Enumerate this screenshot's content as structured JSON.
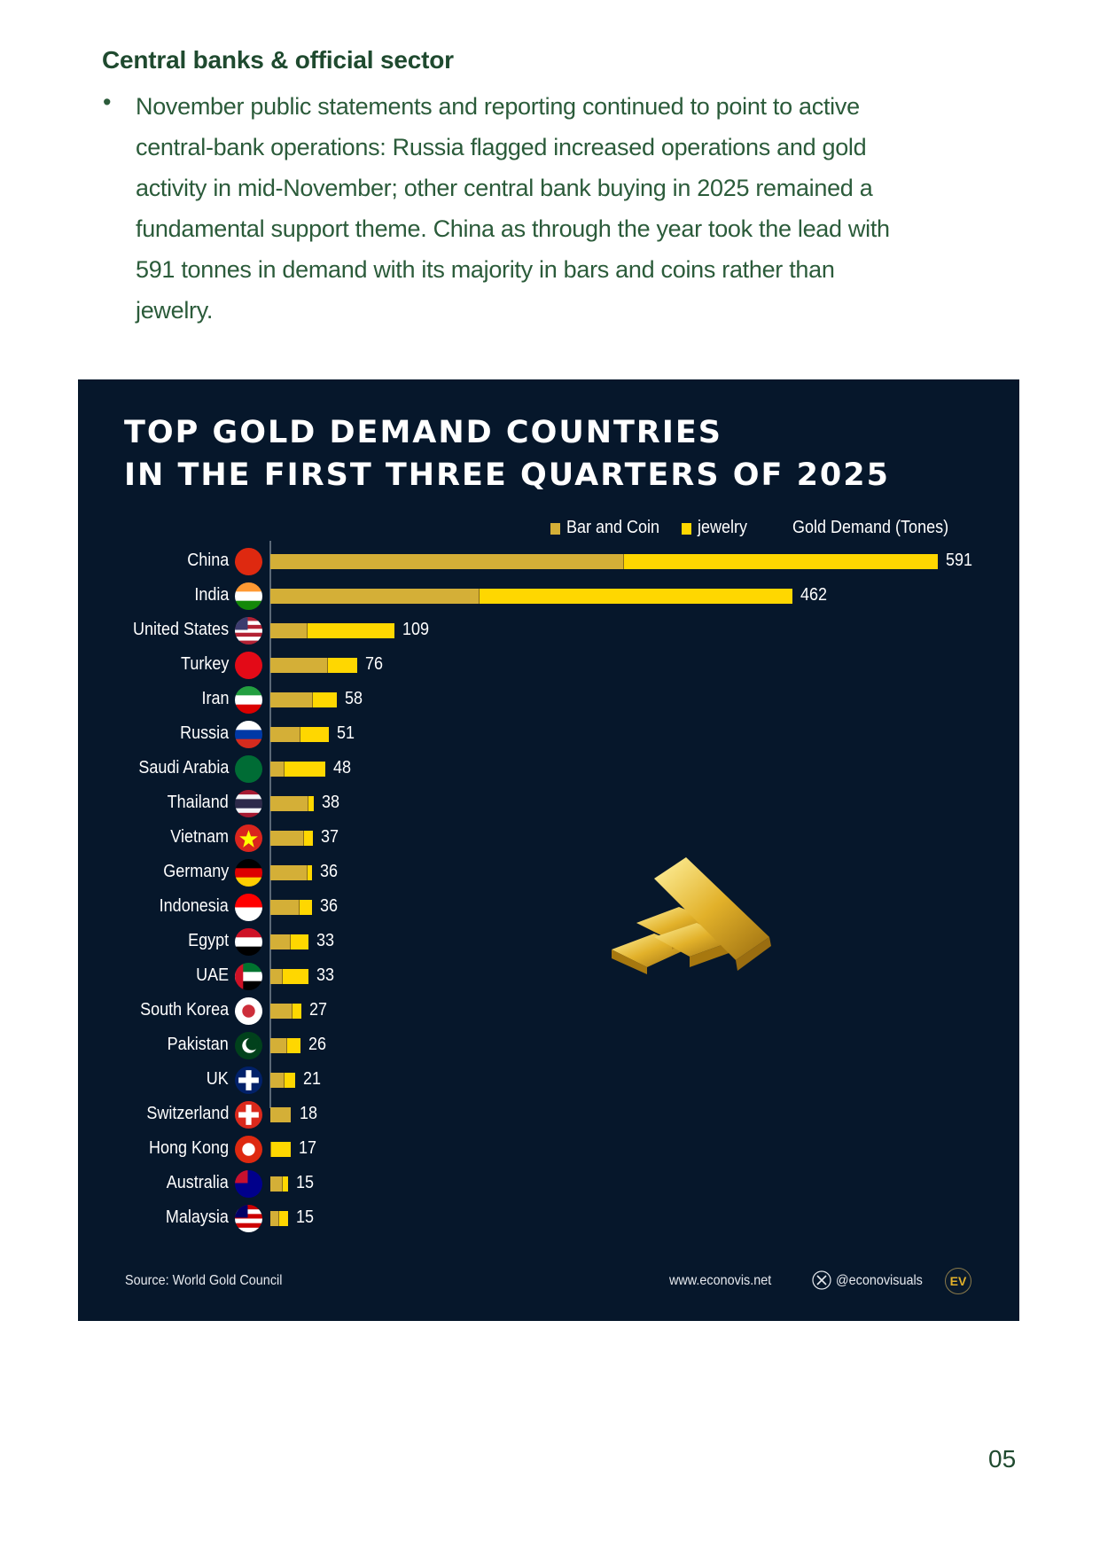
{
  "section": {
    "heading": "Central banks & official sector",
    "bullet_symbol": "•",
    "lines": [
      "November public statements and reporting continued to point to active",
      "central-bank operations: Russia flagged increased operations and gold",
      "activity in mid-November; other central bank buying in 2025 remained a",
      "fundamental support theme. China as through the year took the lead with",
      "591 tonnes in demand with its majority in bars and coins rather than",
      "jewelry."
    ]
  },
  "chart_data": {
    "type": "bar",
    "orientation": "horizontal",
    "stacked": true,
    "title": [
      "TOP GOLD DEMAND COUNTRIES",
      "IN THE FIRST THREE QUARTERS OF 2025"
    ],
    "value_header": "Gold Demand (Tones)",
    "legend_placement": "top-right",
    "categories": [
      "China",
      "India",
      "United States",
      "Turkey",
      "Iran",
      "Russia",
      "Saudi Arabia",
      "Thailand",
      "Vietnam",
      "Germany",
      "Indonesia",
      "Egypt",
      "UAE",
      "South Korea",
      "Pakistan",
      "UK",
      "Switzerland",
      "Hong Kong",
      "Australia",
      "Malaysia"
    ],
    "flags": [
      "flag-china",
      "flag-india",
      "flag-united-states",
      "flag-turkey",
      "flag-iran",
      "flag-russia",
      "flag-saudi-arabia",
      "flag-thailand",
      "flag-vietnam",
      "flag-germany",
      "flag-indonesia",
      "flag-egypt",
      "flag-uae",
      "flag-south-korea",
      "flag-pakistan",
      "flag-uk",
      "flag-switzerland",
      "flag-hong-kong",
      "flag-australia",
      "flag-malaysia"
    ],
    "totals": [
      591,
      462,
      109,
      76,
      58,
      51,
      48,
      38,
      37,
      36,
      36,
      33,
      33,
      27,
      26,
      21,
      18,
      17,
      15,
      15
    ],
    "series": [
      {
        "name": "Bar and Coin",
        "color": "#d4af37",
        "values": [
          313,
          185,
          32,
          50,
          37,
          26,
          12,
          33,
          29,
          32,
          25,
          17,
          10,
          19,
          14,
          12,
          18,
          0,
          10,
          7
        ]
      },
      {
        "name": "jewelry",
        "color": "#ffd700",
        "values": [
          278,
          277,
          77,
          26,
          21,
          25,
          36,
          5,
          8,
          4,
          11,
          16,
          23,
          8,
          12,
          9,
          0,
          17,
          5,
          8
        ]
      }
    ],
    "source": "Source: World Gold Council",
    "website": "www.econovis.net",
    "social_handle": "@econovisuals",
    "logo_text": "EV"
  },
  "colors": {
    "background": "#06172b",
    "heading": "#1f4a2f",
    "body_text": "#2b5b3a"
  },
  "page_number": "05"
}
